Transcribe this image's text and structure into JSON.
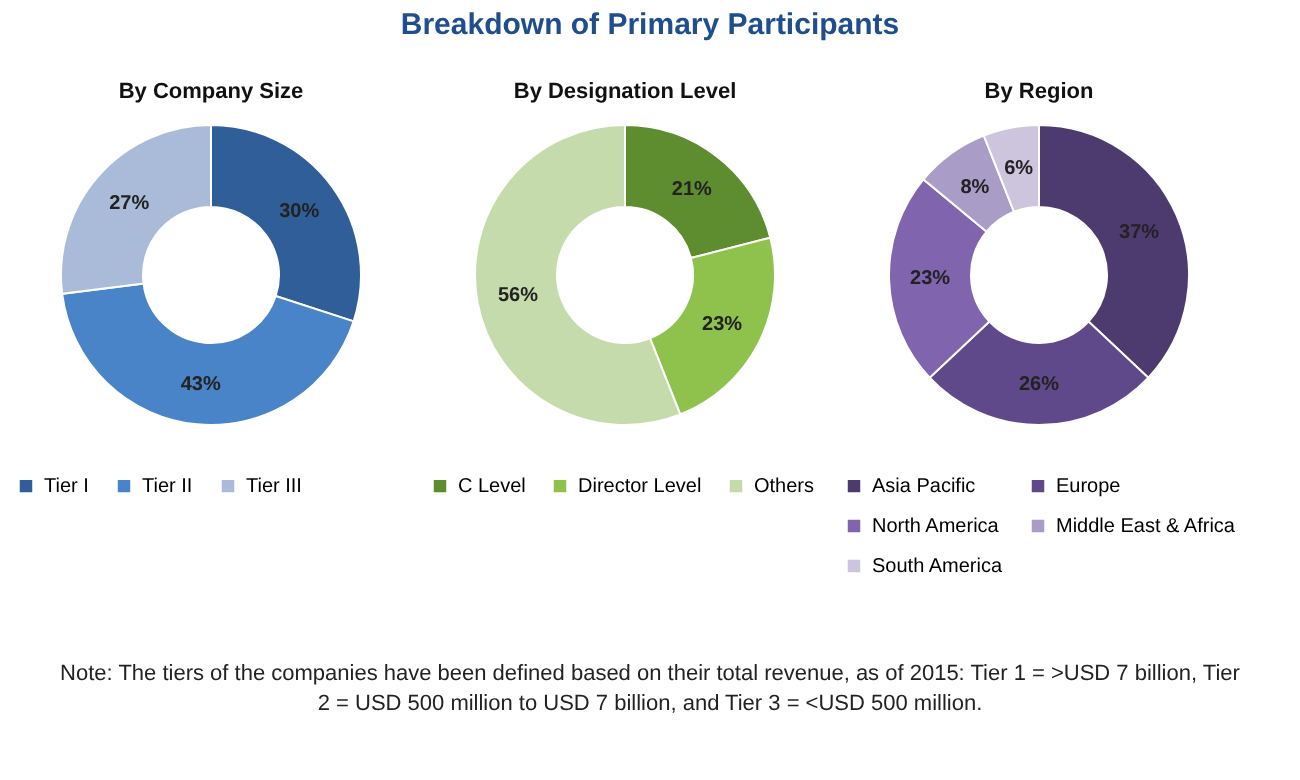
{
  "chart_data": [
    {
      "type": "donut",
      "title": "By Company Size",
      "categories": [
        "Tier I",
        "Tier II",
        "Tier III"
      ],
      "values": [
        30,
        43,
        27
      ],
      "value_labels": [
        "30%",
        "43%",
        "27%"
      ],
      "colors": [
        "#2f5e98",
        "#4a84c8",
        "#a9bbd9"
      ],
      "legend": "bottom",
      "annotations": [
        "Breakdown of Primary Participants",
        "Note: The tiers of the companies have been defined based on their total revenue, as of 2015: Tier 1 = >USD 7 billion, Tier 2 = USD 500 million to USD 7 billion, and Tier 3 = <USD 500 million."
      ]
    },
    {
      "type": "donut",
      "title": "By Designation Level",
      "categories": [
        "C Level",
        "Director Level",
        "Others"
      ],
      "values": [
        21,
        23,
        56
      ],
      "value_labels": [
        "21%",
        "23%",
        "56%"
      ],
      "colors": [
        "#5e8d2f",
        "#8fc14d",
        "#c6dbab"
      ],
      "legend": "bottom"
    },
    {
      "type": "donut",
      "title": "By Region",
      "categories": [
        "Asia Pacific",
        "Europe",
        "North America",
        "Middle East & Africa",
        "South America"
      ],
      "values": [
        37,
        26,
        23,
        8,
        6
      ],
      "value_labels": [
        "37%",
        "26%",
        "23%",
        "8%",
        "6%"
      ],
      "colors": [
        "#4d3b70",
        "#60498b",
        "#8064ad",
        "#a99dc7",
        "#cdc4dd"
      ],
      "legend": "bottom"
    }
  ]
}
